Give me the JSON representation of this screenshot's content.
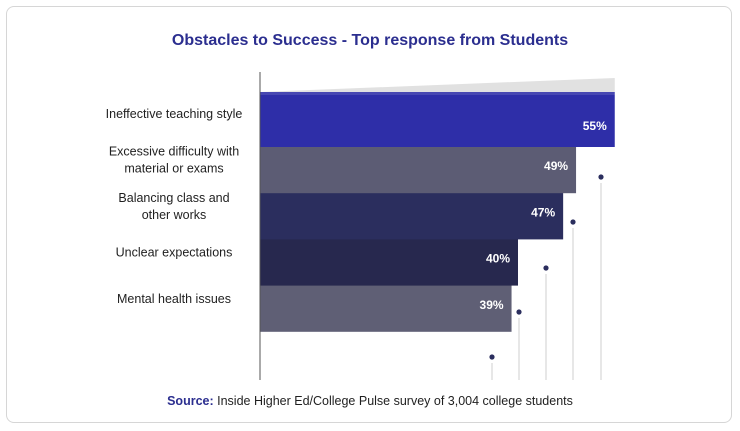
{
  "chart_data": {
    "type": "bar",
    "title": "Obstacles to Success - Top response from Students",
    "categories": [
      [
        "Ineffective teaching style"
      ],
      [
        "Excessive difficulty with",
        "material or exams"
      ],
      [
        "Balancing class and",
        "other works"
      ],
      [
        "Unclear expectations"
      ],
      [
        "Mental health issues"
      ]
    ],
    "values": [
      55,
      49,
      47,
      40,
      39
    ],
    "value_labels": [
      "55%",
      "49%",
      "47%",
      "40%",
      "39%"
    ],
    "orientation": "horizontal",
    "colors": [
      "#2e2ea8",
      "#5c5c74",
      "#2b2e5e",
      "#27284e",
      "#5f5f75"
    ],
    "grid": false,
    "legend": "none"
  },
  "source": {
    "label": "Source:",
    "text": " Inside Higher Ed/College Pulse survey of 3,004 college students"
  }
}
